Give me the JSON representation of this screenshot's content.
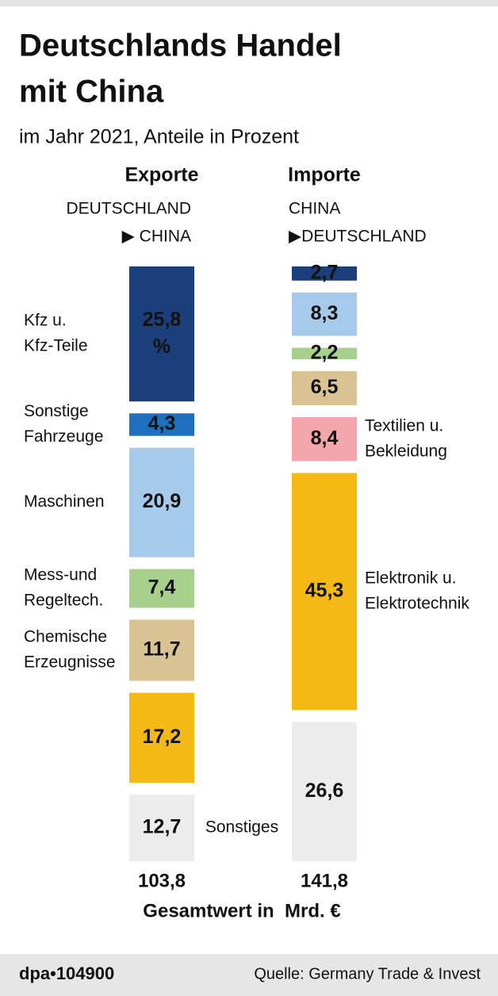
{
  "chart_data": {
    "type": "stacked_column",
    "title": [
      "Deutschlands Handel",
      "mit China"
    ],
    "subtitle": "im Jahr 2021, Anteile in Prozent",
    "series": [
      {
        "name": "Exporte",
        "route": [
          "DEUTSCHLAND",
          "▶ CHINA"
        ],
        "values": [
          25.8,
          4.3,
          20.9,
          7.4,
          11.7,
          17.2,
          12.7
        ],
        "value_labels": [
          "25,8 %",
          "4,3",
          "20,9",
          "7,4",
          "11,7",
          "17,2",
          "12,7"
        ],
        "colors": [
          "#1a3f7a",
          "#1f6fbf",
          "#a6cbea",
          "#a8d08d",
          "#d9c393",
          "#f5b915",
          "#ececec"
        ],
        "segment_labels": [
          [
            "Kfz u.",
            "Kfz-Teile"
          ],
          [
            "Sonstige",
            "Fahrzeuge"
          ],
          [
            "Maschinen"
          ],
          [
            "Mess-und",
            "Regeltech."
          ],
          [
            "Chemische",
            "Erzeugnisse"
          ],
          null,
          [
            "Sonstiges"
          ]
        ],
        "total": 103.8,
        "total_label": "103,8"
      },
      {
        "name": "Importe",
        "route": [
          "CHINA",
          "▶DEUTSCHLAND"
        ],
        "values": [
          2.7,
          8.3,
          2.2,
          6.5,
          8.4,
          45.3,
          26.6
        ],
        "value_labels": [
          "2,7",
          "8,3",
          "2,2",
          "6,5",
          "8,4",
          "45,3",
          "26,6"
        ],
        "colors": [
          "#1a3f7a",
          "#a6cbea",
          "#a8d08d",
          "#d9c393",
          "#f4a6ad",
          "#f5b915",
          "#ececec"
        ],
        "segment_labels": [
          null,
          null,
          null,
          null,
          [
            "Textilien u.",
            "Bekleidung"
          ],
          [
            "Elektronik u.",
            "Elektrotechnik"
          ],
          null
        ],
        "total": 141.8,
        "total_label": "141,8"
      }
    ],
    "total_caption": "Gesamtwert in  Mrd. €",
    "logo": "dpa•104900",
    "source": "Quelle: Germany Trade & Invest"
  }
}
